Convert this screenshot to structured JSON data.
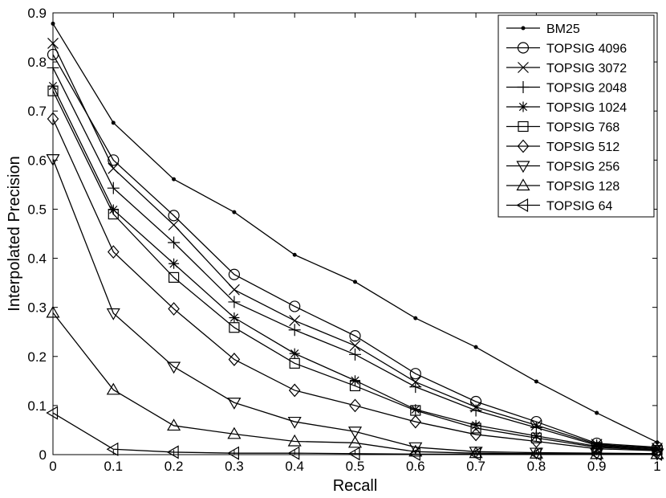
{
  "chart_data": {
    "type": "line",
    "xlabel": "Recall",
    "ylabel": "Interpolated Precision",
    "xlim": [
      0,
      1
    ],
    "ylim": [
      0,
      0.9
    ],
    "x": [
      0,
      0.1,
      0.2,
      0.3,
      0.4,
      0.5,
      0.6,
      0.7,
      0.8,
      0.9,
      1
    ],
    "xticks": [
      "0",
      "0.1",
      "0.2",
      "0.3",
      "0.4",
      "0.5",
      "0.6",
      "0.7",
      "0.8",
      "0.9",
      "1"
    ],
    "yticks": [
      "0",
      "0.1",
      "0.2",
      "0.3",
      "0.4",
      "0.5",
      "0.6",
      "0.7",
      "0.8",
      "0.9"
    ],
    "grid": false,
    "legend_position": "top-right",
    "series": [
      {
        "name": "BM25",
        "marker": "dot",
        "values": [
          0.878,
          0.676,
          0.561,
          0.494,
          0.407,
          0.352,
          0.278,
          0.219,
          0.149,
          0.085,
          0.025
        ]
      },
      {
        "name": "TOPSIG 4096",
        "marker": "circle",
        "values": [
          0.815,
          0.6,
          0.487,
          0.367,
          0.302,
          0.242,
          0.165,
          0.108,
          0.067,
          0.023,
          0.015
        ]
      },
      {
        "name": "TOPSIG 3072",
        "marker": "x",
        "values": [
          0.838,
          0.583,
          0.468,
          0.336,
          0.273,
          0.222,
          0.148,
          0.097,
          0.06,
          0.021,
          0.013
        ]
      },
      {
        "name": "TOPSIG 2048",
        "marker": "plus",
        "values": [
          0.788,
          0.543,
          0.432,
          0.311,
          0.254,
          0.204,
          0.138,
          0.09,
          0.055,
          0.019,
          0.012
        ]
      },
      {
        "name": "TOPSIG 1024",
        "marker": "asterisk",
        "values": [
          0.751,
          0.499,
          0.389,
          0.279,
          0.206,
          0.151,
          0.092,
          0.06,
          0.038,
          0.017,
          0.01
        ]
      },
      {
        "name": "TOPSIG 768",
        "marker": "square",
        "values": [
          0.741,
          0.49,
          0.361,
          0.259,
          0.186,
          0.14,
          0.09,
          0.054,
          0.034,
          0.015,
          0.009
        ]
      },
      {
        "name": "TOPSIG 512",
        "marker": "diamond",
        "values": [
          0.684,
          0.413,
          0.297,
          0.194,
          0.131,
          0.1,
          0.067,
          0.041,
          0.027,
          0.012,
          0.008
        ]
      },
      {
        "name": "TOPSIG 256",
        "marker": "triangle-down",
        "values": [
          0.602,
          0.288,
          0.179,
          0.106,
          0.067,
          0.047,
          0.015,
          0.006,
          0.004,
          0.003,
          0.002
        ]
      },
      {
        "name": "TOPSIG 128",
        "marker": "triangle-up",
        "values": [
          0.289,
          0.132,
          0.059,
          0.042,
          0.027,
          0.024,
          0.006,
          0.003,
          0.002,
          0.001,
          0.001
        ]
      },
      {
        "name": "TOPSIG 64",
        "marker": "triangle-left",
        "values": [
          0.085,
          0.011,
          0.005,
          0.003,
          0.003,
          0.002,
          0.001,
          0.001,
          0.001,
          0.001,
          0.001
        ]
      }
    ]
  }
}
